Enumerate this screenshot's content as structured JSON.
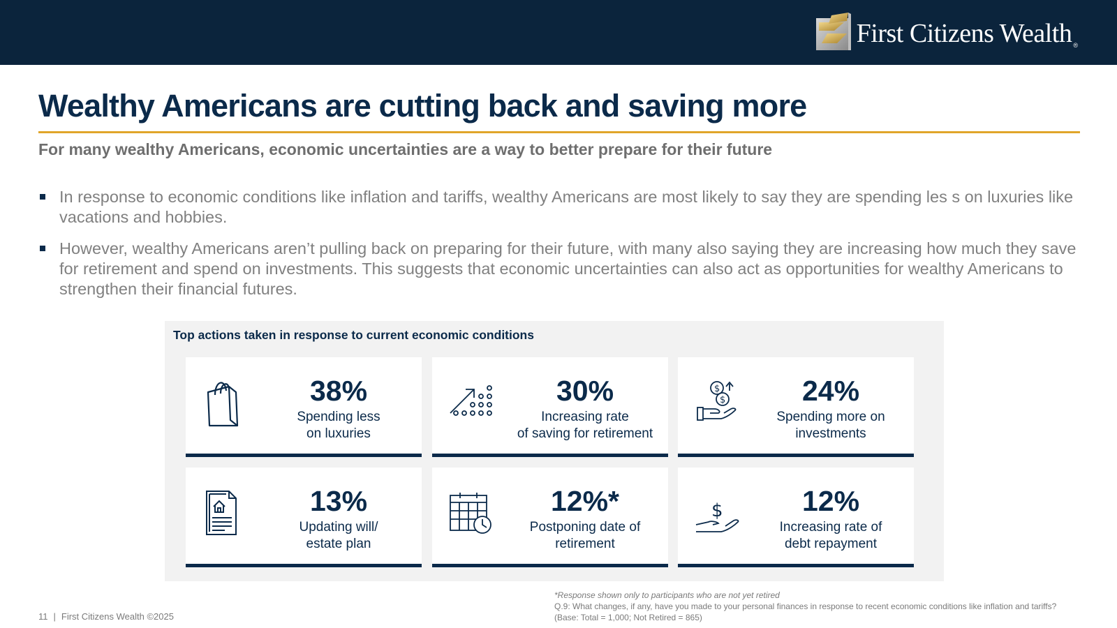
{
  "header": {
    "brand": "First Citizens Wealth",
    "brand_mark": "®",
    "colors": {
      "bar": "#0b243c",
      "accent": "#e0a52a",
      "navy": "#0b2a4a"
    }
  },
  "page": {
    "title": "Wealthy Americans are cutting back and saving more",
    "subtitle": "For many wealthy Americans, economic uncertainties are a way to better prepare for their future",
    "bullets": [
      "In response to economic conditions like inflation and tariffs, wealthy Americans are most likely to say they are spending les s on luxuries like vacations and hobbies.",
      "However, wealthy Americans aren’t pulling back on preparing for their future, with many also saying they are increasing how much they save for retirement and spend on investments. This suggests that economic uncertainties can also act as opportunities for wealthy Americans to strengthen their financial futures."
    ]
  },
  "panel": {
    "title": "Top actions taken in response to current economic conditions",
    "cards": [
      {
        "value": "38%",
        "label_line1": "Spending less",
        "label_line2": "on luxuries",
        "icon": "shopping-bag-icon"
      },
      {
        "value": "30%",
        "label_line1": "Increasing rate",
        "label_line2": "of saving for retirement",
        "icon": "growth-arrow-icon"
      },
      {
        "value": "24%",
        "label_line1": "Spending more on",
        "label_line2": "investments",
        "icon": "coins-hand-icon"
      },
      {
        "value": "13%",
        "label_line1": "Updating will/",
        "label_line2": "estate plan",
        "icon": "estate-document-icon"
      },
      {
        "value": "12%*",
        "label_line1": "Postponing date of",
        "label_line2": "retirement",
        "icon": "calendar-clock-icon"
      },
      {
        "value": "12%",
        "label_line1": "Increasing rate of",
        "label_line2": "debt repayment",
        "icon": "dollar-hand-icon"
      }
    ]
  },
  "footer": {
    "page_number": "11",
    "separator": "|",
    "copyright": "First Citizens Wealth ©2025",
    "note_star": "*Response shown only to participants who are not yet retired",
    "note_question": "Q.9:  What changes, if any, have you made to your personal finances in response to recent economic conditions like inflation and tariffs?",
    "note_base": "(Base: Total = 1,000; Not Retired = 865)"
  }
}
